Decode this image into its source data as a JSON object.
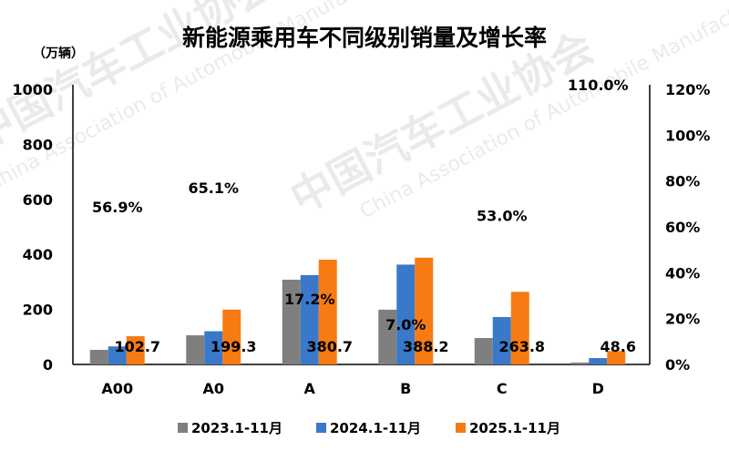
{
  "chart_data": {
    "type": "bar",
    "title": "新能源乘用车不同级别销量及增长率",
    "ylabel": "（万辆）",
    "ylim": [
      0,
      1000
    ],
    "yticks": [
      0,
      200,
      400,
      600,
      800,
      1000
    ],
    "y2lim": [
      0,
      120
    ],
    "y2ticks": [
      "0%",
      "20%",
      "40%",
      "60%",
      "80%",
      "100%",
      "120%"
    ],
    "categories": [
      "A00",
      "A0",
      "A",
      "B",
      "C",
      "D"
    ],
    "series": [
      {
        "name": "2023.1-11月",
        "color": "#7f7f7f",
        "values": [
          53,
          106,
          308,
          199,
          96,
          7
        ]
      },
      {
        "name": "2024.1-11月",
        "color": "#3a78c9",
        "values": [
          65.5,
          120.7,
          324.8,
          362.8,
          172.4,
          23.1
        ]
      },
      {
        "name": "2025.1-11月",
        "color": "#f77b12",
        "values": [
          102.7,
          199.3,
          380.7,
          388.2,
          263.8,
          48.6
        ]
      }
    ],
    "value_labels": [
      "102.7",
      "199.3",
      "380.7",
      "388.2",
      "263.8",
      "48.6"
    ],
    "growth_rates": [
      56.9,
      65.1,
      17.2,
      7.0,
      53.0,
      110.0
    ],
    "growth_labels": [
      "56.9%",
      "65.1%",
      "17.2%",
      "7.0%",
      "53.0%",
      "110.0%"
    ],
    "grid": false,
    "legend_placement": "bottom"
  },
  "watermark": {
    "cn": "中国汽车工业协会",
    "en": "China Association of Automobile Manufacturers"
  }
}
